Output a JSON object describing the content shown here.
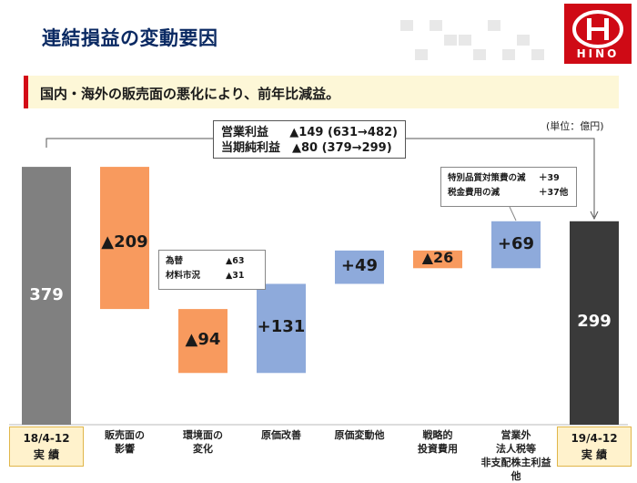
{
  "title": "連結損益の変動要因",
  "subtitle": "国内・海外の販売面の悪化により、前年比減益。",
  "logo_text": "HINO",
  "unit": "(単位：億円)",
  "summary": {
    "rows": [
      {
        "label": "営業利益",
        "value": "▲149 (631→482)"
      },
      {
        "label": "当期純利益",
        "value": "▲80 (379→299)"
      }
    ]
  },
  "notes": {
    "left": [
      {
        "label": "為替",
        "value": "▲63"
      },
      {
        "label": "材料市況",
        "value": "▲31"
      }
    ],
    "right": [
      {
        "label": "特別品質対策費の減",
        "value": "＋39"
      },
      {
        "label": "税金費用の減",
        "value": "＋37他"
      }
    ]
  },
  "colors": {
    "total_start": "#808080",
    "total_end": "#3a3a3a",
    "decrease": "#f89a5e",
    "increase": "#8eaadb",
    "title": "#0b2a63",
    "accent": "#d30b16"
  },
  "chart_data": {
    "type": "bar",
    "subtype": "waterfall",
    "title": "連結損益の変動要因",
    "unit": "億円",
    "categories": [
      "18/4-12\n実 績",
      "販売面の\n影響",
      "環境面の\n変化",
      "原価改善",
      "原価変動他",
      "戦略的\n投資費用",
      "営業外\n法人税等\n非支配株主利益\n他",
      "19/4-12\n実 績"
    ],
    "values": [
      379,
      -209,
      -94,
      131,
      49,
      -26,
      69,
      299
    ],
    "labels": [
      "379",
      "▲209",
      "▲94",
      "+131",
      "+49",
      "▲26",
      "+69",
      "299"
    ],
    "kinds": [
      "total",
      "decrease",
      "decrease",
      "increase",
      "increase",
      "decrease",
      "increase",
      "total"
    ],
    "boxed_categories": [
      0,
      7
    ]
  }
}
